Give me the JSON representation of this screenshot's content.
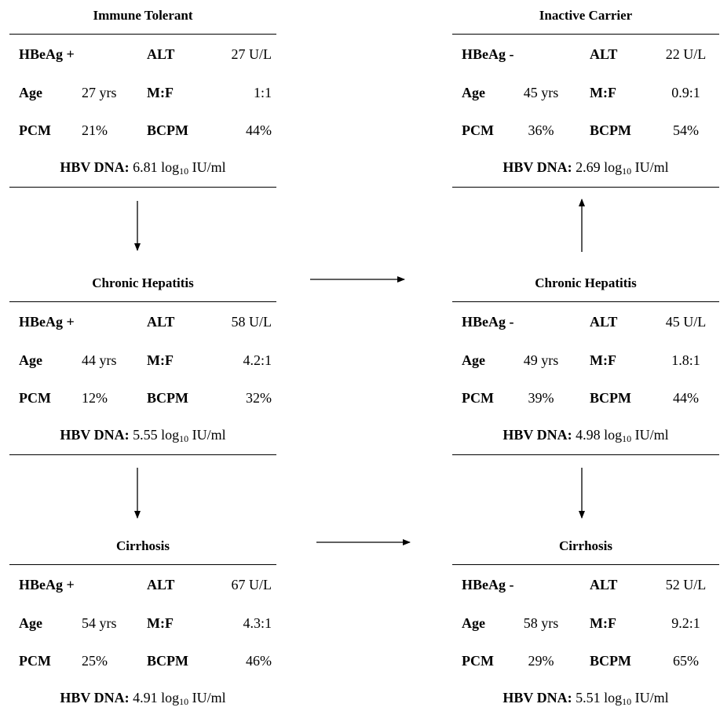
{
  "boxes": {
    "it": {
      "title": "Immune Tolerant",
      "hbeag": "HBeAg +",
      "alt_label": "ALT",
      "alt": "27 U/L",
      "age_label": "Age",
      "age": "27 yrs",
      "mf_label": "M:F",
      "mf": "1:1",
      "pcm_label": "PCM",
      "pcm": "21%",
      "bcpm_label": "BCPM",
      "bcpm": "44%",
      "dna_label": "HBV DNA:",
      "dna_value": "6.81",
      "dna_log": "log",
      "dna_sub": "10",
      "dna_unit": "IU/ml"
    },
    "ic": {
      "title": "Inactive Carrier",
      "hbeag": "HBeAg -",
      "alt_label": "ALT",
      "alt": "22 U/L",
      "age_label": "Age",
      "age": "45 yrs",
      "mf_label": "M:F",
      "mf": "0.9:1",
      "pcm_label": "PCM",
      "pcm": "36%",
      "bcpm_label": "BCPM",
      "bcpm": "54%",
      "dna_label": "HBV DNA:",
      "dna_value": "2.69",
      "dna_log": "log",
      "dna_sub": "10",
      "dna_unit": "IU/ml"
    },
    "ch_pos": {
      "title": "Chronic Hepatitis",
      "hbeag": "HBeAg +",
      "alt_label": "ALT",
      "alt": "58 U/L",
      "age_label": "Age",
      "age": "44 yrs",
      "mf_label": "M:F",
      "mf": "4.2:1",
      "pcm_label": "PCM",
      "pcm": "12%",
      "bcpm_label": "BCPM",
      "bcpm": "32%",
      "dna_label": "HBV DNA:",
      "dna_value": "5.55",
      "dna_log": "log",
      "dna_sub": "10",
      "dna_unit": "IU/ml"
    },
    "ch_neg": {
      "title": "Chronic Hepatitis",
      "hbeag": "HBeAg -",
      "alt_label": "ALT",
      "alt": "45 U/L",
      "age_label": "Age",
      "age": "49 yrs",
      "mf_label": "M:F",
      "mf": "1.8:1",
      "pcm_label": "PCM",
      "pcm": "39%",
      "bcpm_label": "BCPM",
      "bcpm": "44%",
      "dna_label": "HBV DNA:",
      "dna_value": "4.98",
      "dna_log": "log",
      "dna_sub": "10",
      "dna_unit": "IU/ml"
    },
    "ci_pos": {
      "title": "Cirrhosis",
      "hbeag": "HBeAg +",
      "alt_label": "ALT",
      "alt": "67 U/L",
      "age_label": "Age",
      "age": "54 yrs",
      "mf_label": "M:F",
      "mf": "4.3:1",
      "pcm_label": "PCM",
      "pcm": "25%",
      "bcpm_label": "BCPM",
      "bcpm": "46%",
      "dna_label": "HBV DNA:",
      "dna_value": "4.91",
      "dna_log": "log",
      "dna_sub": "10",
      "dna_unit": "IU/ml"
    },
    "ci_neg": {
      "title": "Cirrhosis",
      "hbeag": "HBeAg -",
      "alt_label": "ALT",
      "alt": "52 U/L",
      "age_label": "Age",
      "age": "58 yrs",
      "mf_label": "M:F",
      "mf": "9.2:1",
      "pcm_label": "PCM",
      "pcm": "29%",
      "bcpm_label": "BCPM",
      "bcpm": "65%",
      "dna_label": "HBV DNA:",
      "dna_value": "5.51",
      "dna_log": "log",
      "dna_sub": "10",
      "dna_unit": "IU/ml"
    }
  }
}
